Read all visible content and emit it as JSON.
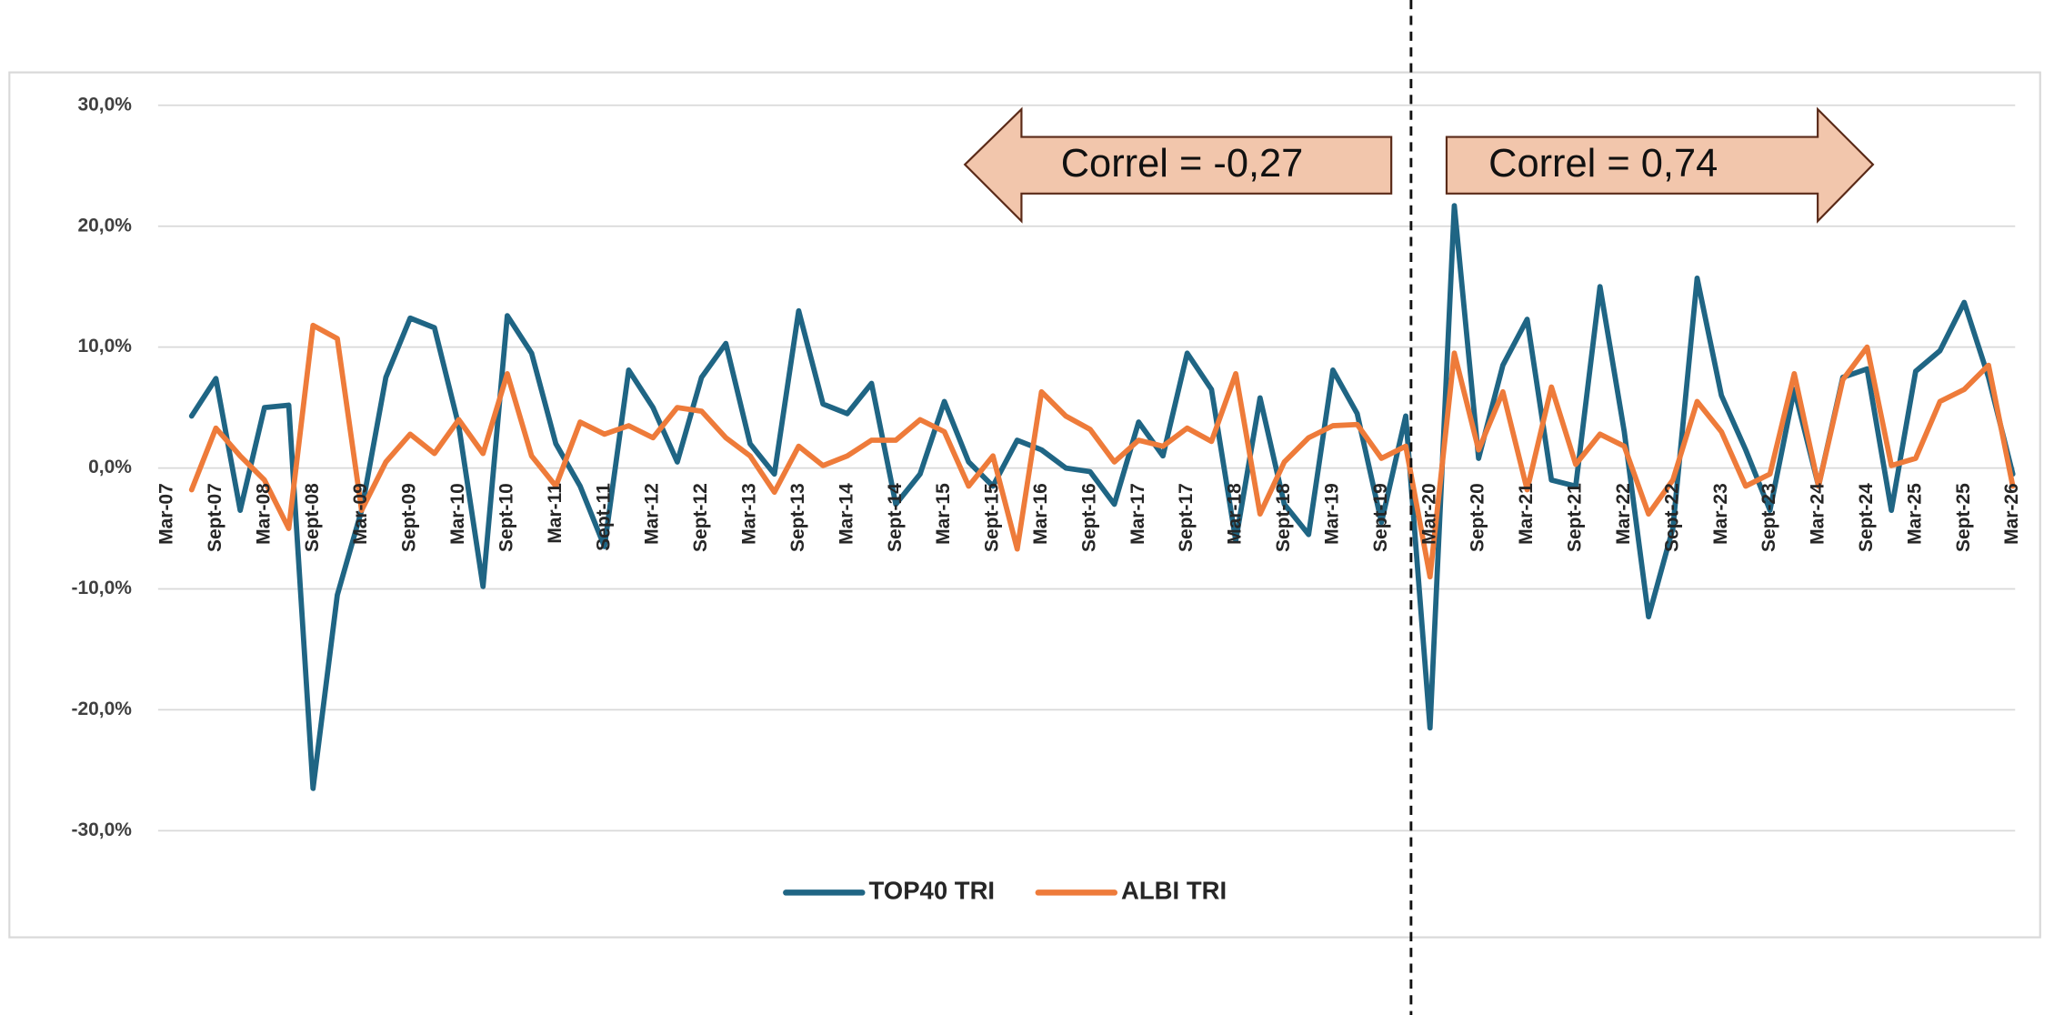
{
  "chart_data": {
    "type": "line",
    "categories": [
      "Mar-07",
      null,
      "Sept-07",
      null,
      "Mar-08",
      null,
      "Sept-08",
      null,
      "Mar-09",
      null,
      "Sept-09",
      null,
      "Mar-10",
      null,
      "Sept-10",
      null,
      "Mar-11",
      null,
      "Sept-11",
      null,
      "Mar-12",
      null,
      "Sept-12",
      null,
      "Mar-13",
      null,
      "Sept-13",
      null,
      "Mar-14",
      null,
      "Sept-14",
      null,
      "Mar-15",
      null,
      "Sept-15",
      null,
      "Mar-16",
      null,
      "Sept-16",
      null,
      "Mar-17",
      null,
      "Sept-17",
      null,
      "Mar-18",
      null,
      "Sept-18",
      null,
      "Mar-19",
      null,
      "Sept-19",
      null,
      "Mar-20",
      null,
      "Sept-20",
      null,
      "Mar-21",
      null,
      "Sept-21",
      null,
      "Mar-22",
      null,
      "Sept-22",
      null,
      "Mar-23",
      null,
      "Sept-23",
      null,
      "Mar-24",
      null,
      "Sept-24",
      null,
      "Mar-25",
      null,
      "Sept-25",
      null,
      "Mar-26"
    ],
    "series": [
      {
        "name": "TOP40 TRI",
        "color": "#1f6584",
        "values": [
          null,
          4.3,
          7.4,
          -3.5,
          5.0,
          5.2,
          -26.5,
          -10.5,
          -3.5,
          7.5,
          12.4,
          11.6,
          3.5,
          -9.8,
          12.6,
          9.5,
          2.0,
          -1.5,
          -6.5,
          8.1,
          5.0,
          0.5,
          7.5,
          10.3,
          2.0,
          -0.5,
          13.0,
          5.3,
          4.5,
          7.0,
          -3.0,
          -0.5,
          5.5,
          0.5,
          -1.5,
          2.3,
          1.5,
          0.0,
          -0.3,
          -3.0,
          3.8,
          1.0,
          9.5,
          6.5,
          -6.0,
          5.8,
          -3.0,
          -5.5,
          8.1,
          4.5,
          -4.5,
          4.3,
          -21.5,
          21.7,
          0.8,
          8.5,
          12.3,
          -1.0,
          -1.5,
          15.0,
          3.0,
          -12.3,
          -5.0,
          15.7,
          6.0,
          1.5,
          -3.5,
          6.5,
          -1.5,
          7.5,
          8.2,
          -3.5,
          8.0,
          9.7,
          13.7,
          7.5,
          -0.5
        ]
      },
      {
        "name": "ALBI TRI",
        "color": "#ee7b3a",
        "values": [
          null,
          -1.8,
          3.3,
          1.0,
          -1.0,
          -5.0,
          11.8,
          10.7,
          -3.5,
          0.5,
          2.8,
          1.2,
          4.0,
          1.2,
          7.8,
          1.0,
          -1.5,
          3.8,
          2.8,
          3.5,
          2.5,
          5.0,
          4.7,
          2.5,
          1.0,
          -2.0,
          1.8,
          0.2,
          1.0,
          2.3,
          2.3,
          4.0,
          3.0,
          -1.5,
          1.0,
          -6.7,
          6.3,
          4.3,
          3.2,
          0.5,
          2.3,
          1.8,
          3.3,
          2.2,
          7.8,
          -3.8,
          0.5,
          2.5,
          3.5,
          3.6,
          0.8,
          1.8,
          -9.0,
          9.5,
          1.5,
          6.3,
          -1.8,
          6.7,
          0.3,
          2.8,
          1.8,
          -3.8,
          -1.0,
          5.5,
          3.0,
          -1.5,
          -0.5,
          7.8,
          -1.5,
          7.3,
          10.0,
          0.2,
          0.8,
          5.5,
          6.5,
          8.5,
          -1.5
        ]
      }
    ],
    "ylim": [
      -30,
      30
    ],
    "yticks": [
      {
        "value": -30,
        "label": "-30,0%"
      },
      {
        "value": -20,
        "label": "-20,0%"
      },
      {
        "value": -10,
        "label": "-10,0%"
      },
      {
        "value": 0,
        "label": "0,0%"
      },
      {
        "value": 10,
        "label": "10,0%"
      },
      {
        "value": 20,
        "label": "20,0%"
      },
      {
        "value": 30,
        "label": "30,0%"
      }
    ],
    "grid": true,
    "legend": "bottom",
    "annotations": [
      "Correl = -0,27",
      "Correl = 0,74"
    ]
  }
}
